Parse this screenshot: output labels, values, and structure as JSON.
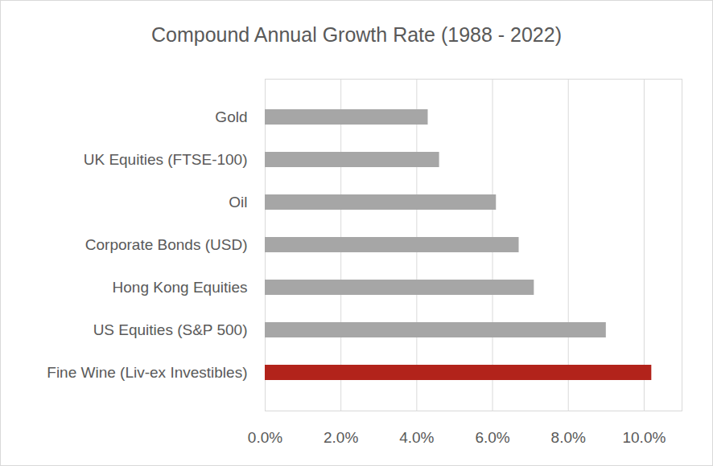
{
  "chart_data": {
    "type": "bar",
    "orientation": "horizontal",
    "title": "Compound Annual Growth Rate (1988 - 2022)",
    "categories": [
      "Gold",
      "UK Equities (FTSE-100)",
      "Oil",
      "Corporate Bonds (USD)",
      "Hong Kong Equities",
      "US Equities (S&P 500)",
      "Fine Wine (Liv-ex Investibles)"
    ],
    "values": [
      4.3,
      4.6,
      6.1,
      6.7,
      7.1,
      9.0,
      10.2
    ],
    "colors": [
      "#a6a6a6",
      "#a6a6a6",
      "#a6a6a6",
      "#a6a6a6",
      "#a6a6a6",
      "#a6a6a6",
      "#b2231b"
    ],
    "xlim": [
      0,
      11
    ],
    "xticks": [
      {
        "value": 0,
        "label": "0.0%"
      },
      {
        "value": 2,
        "label": "2.0%"
      },
      {
        "value": 4,
        "label": "4.0%"
      },
      {
        "value": 6,
        "label": "6.0%"
      },
      {
        "value": 8,
        "label": "8.0%"
      },
      {
        "value": 10,
        "label": "10.0%"
      }
    ],
    "grid": true
  }
}
